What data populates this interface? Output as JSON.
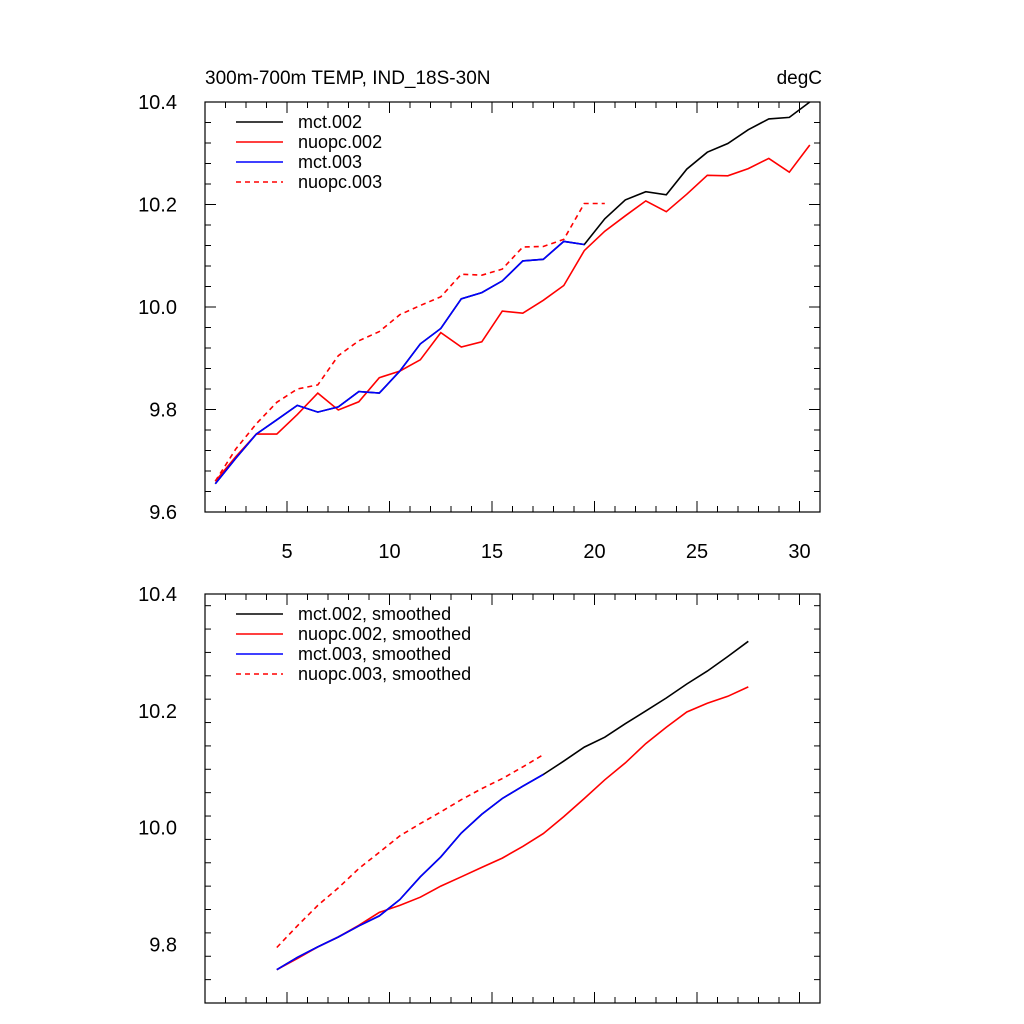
{
  "chart_data": [
    {
      "type": "line",
      "title_left": "300m-700m TEMP, IND_18S-30N",
      "title_right": "degC",
      "xlim": [
        1,
        31
      ],
      "ylim": [
        9.6,
        10.4
      ],
      "xticks": [
        5,
        10,
        15,
        20,
        25,
        30
      ],
      "xtick_labels": [
        "5",
        "10",
        "15",
        "20",
        "25",
        "30"
      ],
      "yticks": [
        9.6,
        9.8,
        10.0,
        10.2,
        10.4
      ],
      "ytick_labels": [
        "9.6",
        "9.8",
        "10.0",
        "10.2",
        "10.4"
      ],
      "legend_position": "top-left",
      "series": [
        {
          "name": "mct.002",
          "color": "#000000",
          "dash": "solid",
          "x": [
            1.5,
            2.5,
            3.5,
            4.5,
            5.5,
            6.5,
            7.5,
            8.5,
            9.5,
            10.5,
            11.5,
            12.5,
            13.5,
            14.5,
            15.5,
            16.5,
            17.5,
            18.5,
            19.5,
            20.5,
            21.5,
            22.5,
            23.5,
            24.5,
            25.5,
            26.5,
            27.5,
            28.5,
            29.5,
            30.5
          ],
          "y": [
            9.655,
            9.705,
            9.752,
            9.78,
            9.808,
            9.795,
            9.805,
            9.835,
            9.832,
            9.875,
            9.928,
            9.958,
            10.016,
            10.028,
            10.051,
            10.09,
            10.093,
            10.128,
            10.122,
            10.172,
            10.209,
            10.225,
            10.219,
            10.269,
            10.302,
            10.319,
            10.346,
            10.367,
            10.37,
            10.4
          ]
        },
        {
          "name": "nuopc.002",
          "color": "#ff0000",
          "dash": "solid",
          "x": [
            1.5,
            2.5,
            3.5,
            4.5,
            5.5,
            6.5,
            7.5,
            8.5,
            9.5,
            10.5,
            11.5,
            12.5,
            13.5,
            14.5,
            15.5,
            16.5,
            17.5,
            18.5,
            19.5,
            20.5,
            21.5,
            22.5,
            23.5,
            24.5,
            25.5,
            26.5,
            27.5,
            28.5,
            29.5,
            30.5
          ],
          "y": [
            9.66,
            9.708,
            9.752,
            9.752,
            9.79,
            9.832,
            9.799,
            9.815,
            9.862,
            9.875,
            9.897,
            9.95,
            9.922,
            9.932,
            9.992,
            9.988,
            10.013,
            10.042,
            10.11,
            10.148,
            10.178,
            10.207,
            10.186,
            10.22,
            10.257,
            10.256,
            10.27,
            10.29,
            10.263,
            10.316
          ]
        },
        {
          "name": "mct.003",
          "color": "#0000ff",
          "dash": "solid",
          "x": [
            1.5,
            2.5,
            3.5,
            4.5,
            5.5,
            6.5,
            7.5,
            8.5,
            9.5,
            10.5,
            11.5,
            12.5,
            13.5,
            14.5,
            15.5,
            16.5,
            17.5,
            18.5,
            19.5
          ],
          "y": [
            9.655,
            9.705,
            9.752,
            9.78,
            9.808,
            9.795,
            9.805,
            9.835,
            9.832,
            9.875,
            9.928,
            9.958,
            10.016,
            10.028,
            10.051,
            10.09,
            10.093,
            10.128,
            10.122
          ]
        },
        {
          "name": "nuopc.003",
          "color": "#ff0000",
          "dash": "dashed",
          "x": [
            1.5,
            2.5,
            3.5,
            4.5,
            5.5,
            6.5,
            7.5,
            8.5,
            9.5,
            10.5,
            11.5,
            12.5,
            13.5,
            14.5,
            15.5,
            16.5,
            17.5,
            18.5,
            19.5,
            20.5
          ],
          "y": [
            9.66,
            9.723,
            9.772,
            9.814,
            9.84,
            9.848,
            9.905,
            9.934,
            9.952,
            9.985,
            10.003,
            10.02,
            10.064,
            10.062,
            10.074,
            10.117,
            10.118,
            10.132,
            10.202,
            10.202
          ]
        }
      ]
    },
    {
      "type": "line",
      "xlim": [
        1,
        31
      ],
      "ylim": [
        9.7,
        10.4
      ],
      "xticks": [
        5,
        10,
        15,
        20,
        25,
        30
      ],
      "yticks": [
        9.8,
        10.0,
        10.2,
        10.4
      ],
      "ytick_labels": [
        "9.8",
        "10.0",
        "10.2",
        "10.4"
      ],
      "legend_position": "top-left",
      "series": [
        {
          "name": "mct.002, smoothed",
          "color": "#000000",
          "dash": "solid",
          "x": [
            4.5,
            5.5,
            6.5,
            7.5,
            8.5,
            9.5,
            10.5,
            11.5,
            12.5,
            13.5,
            14.5,
            15.5,
            16.5,
            17.5,
            18.5,
            19.5,
            20.5,
            21.5,
            22.5,
            23.5,
            24.5,
            25.5,
            26.5,
            27.5
          ],
          "y": [
            9.757,
            9.778,
            9.796,
            9.813,
            9.832,
            9.849,
            9.877,
            9.916,
            9.95,
            9.991,
            10.023,
            10.05,
            10.071,
            10.091,
            10.114,
            10.138,
            10.155,
            10.178,
            10.2,
            10.222,
            10.246,
            10.268,
            10.293,
            10.319
          ]
        },
        {
          "name": "nuopc.002, smoothed",
          "color": "#ff0000",
          "dash": "solid",
          "x": [
            4.5,
            5.5,
            6.5,
            7.5,
            8.5,
            9.5,
            10.5,
            11.5,
            12.5,
            13.5,
            14.5,
            15.5,
            16.5,
            17.5,
            18.5,
            19.5,
            20.5,
            21.5,
            22.5,
            23.5,
            24.5,
            25.5,
            26.5,
            27.5
          ],
          "y": [
            9.757,
            9.776,
            9.796,
            9.813,
            9.833,
            9.855,
            9.867,
            9.881,
            9.9,
            9.916,
            9.932,
            9.948,
            9.968,
            9.99,
            10.019,
            10.05,
            10.082,
            10.111,
            10.144,
            10.172,
            10.198,
            10.213,
            10.225,
            10.241
          ]
        },
        {
          "name": "mct.003, smoothed",
          "color": "#0000ff",
          "dash": "solid",
          "x": [
            4.5,
            5.5,
            6.5,
            7.5,
            8.5,
            9.5,
            10.5,
            11.5,
            12.5,
            13.5,
            14.5,
            15.5,
            16.5,
            17.5
          ],
          "y": [
            9.757,
            9.778,
            9.796,
            9.813,
            9.832,
            9.849,
            9.877,
            9.916,
            9.95,
            9.991,
            10.023,
            10.05,
            10.071,
            10.091
          ]
        },
        {
          "name": "nuopc.003, smoothed",
          "color": "#ff0000",
          "dash": "dashed",
          "x": [
            4.5,
            5.5,
            6.5,
            7.5,
            8.5,
            9.5,
            10.5,
            11.5,
            12.5,
            13.5,
            14.5,
            15.5,
            16.5,
            17.5
          ],
          "y": [
            9.795,
            9.832,
            9.867,
            9.897,
            9.93,
            9.958,
            9.986,
            10.007,
            10.027,
            10.048,
            10.067,
            10.084,
            10.104,
            10.125
          ]
        }
      ]
    }
  ]
}
